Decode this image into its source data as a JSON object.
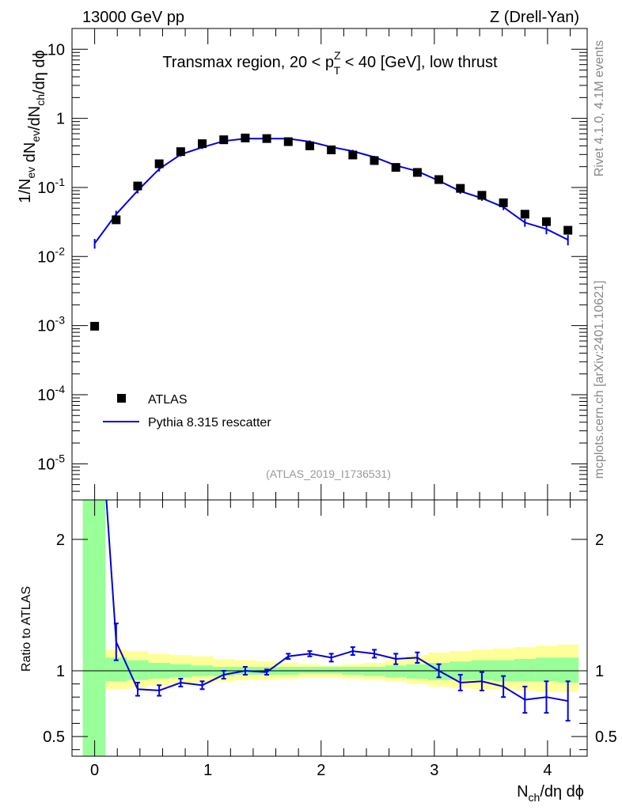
{
  "header": {
    "left": "13000 GeV pp",
    "right": "Z (Drell-Yan)"
  },
  "side_labels": {
    "rivet": "Rivet 4.1.0,  4.1M events",
    "mcplots": "mcplots.cern.ch [arXiv:2401.10621]"
  },
  "colors": {
    "mc_line": "#0000dd",
    "band_stat": "#99ff99",
    "band_total": "#ffff99",
    "data_marker": "#000000"
  },
  "chart_data": [
    {
      "type": "scatter",
      "title": "Transmax region, 20 < p_T^Z < 40 [GeV], low thrust",
      "analysis_id": "(ATLAS_2019_I1736531)",
      "ylabel": "1/N_ev dN_ev/dN_ch/dη dϕ",
      "yscale": "log",
      "ylim": [
        3e-06,
        20
      ],
      "xlim": [
        -0.2,
        4.35
      ],
      "y_ticks": [
        {
          "label": "10",
          "value": 10
        },
        {
          "label": "1",
          "value": 1
        },
        {
          "label": "10^-1",
          "value": 0.1
        },
        {
          "label": "10^-2",
          "value": 0.01
        },
        {
          "label": "10^-3",
          "value": 0.001
        },
        {
          "label": "10^-4",
          "value": 0.0001
        },
        {
          "label": "10^-5",
          "value": 1e-05
        }
      ],
      "legend": [
        {
          "name": "ATLAS",
          "style": "marker"
        },
        {
          "name": "Pythia 8.315 rescatter",
          "style": "line"
        }
      ],
      "x": [
        0,
        0.19,
        0.38,
        0.57,
        0.76,
        0.95,
        1.14,
        1.33,
        1.52,
        1.71,
        1.9,
        2.09,
        2.28,
        2.47,
        2.66,
        2.85,
        3.04,
        3.23,
        3.42,
        3.61,
        3.8,
        3.99,
        4.18
      ],
      "series": [
        {
          "name": "ATLAS",
          "values": [
            0.00098,
            0.034,
            0.105,
            0.22,
            0.33,
            0.43,
            0.49,
            0.52,
            0.51,
            0.46,
            0.4,
            0.35,
            0.295,
            0.245,
            0.195,
            0.165,
            0.13,
            0.097,
            0.077,
            0.06,
            0.041,
            0.032,
            0.024
          ]
        },
        {
          "name": "Pythia 8.315 rescatter",
          "values": [
            0.0155,
            0.041,
            0.09,
            0.185,
            0.3,
            0.38,
            0.47,
            0.51,
            0.51,
            0.51,
            0.46,
            0.385,
            0.335,
            0.275,
            0.208,
            0.172,
            0.125,
            0.088,
            0.07,
            0.052,
            0.031,
            0.025,
            0.0175
          ],
          "errors": [
            0.0025,
            0.005,
            0.008,
            0.015,
            0.02,
            0.02,
            0.02,
            0.02,
            0.02,
            0.02,
            0.02,
            0.02,
            0.015,
            0.012,
            0.01,
            0.009,
            0.008,
            0.007,
            0.006,
            0.005,
            0.004,
            0.004,
            0.003
          ]
        }
      ]
    },
    {
      "type": "line",
      "ylabel": "Ratio to ATLAS",
      "xlabel": "N_ch/dη dϕ",
      "ylim": [
        0.35,
        2.3
      ],
      "xlim": [
        -0.2,
        4.35
      ],
      "y_ticks": [
        {
          "label": "2",
          "value": 2
        },
        {
          "label": "1",
          "value": 1
        },
        {
          "label": "0.5",
          "value": 0.5
        }
      ],
      "x_ticks": [
        {
          "label": "0",
          "value": 0
        },
        {
          "label": "1",
          "value": 1
        },
        {
          "label": "2",
          "value": 2
        },
        {
          "label": "3",
          "value": 3
        },
        {
          "label": "4",
          "value": 4
        }
      ],
      "band_edges": [
        -0.105,
        0.095,
        0.285,
        0.475,
        0.665,
        0.855,
        1.045,
        1.235,
        1.425,
        1.615,
        1.805,
        1.995,
        2.185,
        2.375,
        2.565,
        2.755,
        2.945,
        3.135,
        3.325,
        3.515,
        3.705,
        3.895,
        4.085,
        4.275
      ],
      "band_stat": [
        [
          0.3,
          2.3
        ],
        [
          0.92,
          1.1
        ],
        [
          0.93,
          1.08
        ],
        [
          0.94,
          1.06
        ],
        [
          0.95,
          1.05
        ],
        [
          0.96,
          1.04
        ],
        [
          0.96,
          1.03
        ],
        [
          0.97,
          1.03
        ],
        [
          0.97,
          1.03
        ],
        [
          0.97,
          1.03
        ],
        [
          0.98,
          1.03
        ],
        [
          0.98,
          1.03
        ],
        [
          0.97,
          1.03
        ],
        [
          0.96,
          1.03
        ],
        [
          0.95,
          1.04
        ],
        [
          0.94,
          1.05
        ],
        [
          0.93,
          1.06
        ],
        [
          0.93,
          1.07
        ],
        [
          0.93,
          1.08
        ],
        [
          0.92,
          1.08
        ],
        [
          0.92,
          1.09
        ],
        [
          0.92,
          1.1
        ],
        [
          0.91,
          1.1
        ]
      ],
      "band_total": [
        [
          0.3,
          2.3
        ],
        [
          0.86,
          1.16
        ],
        [
          0.87,
          1.15
        ],
        [
          0.89,
          1.13
        ],
        [
          0.9,
          1.12
        ],
        [
          0.91,
          1.11
        ],
        [
          0.92,
          1.09
        ],
        [
          0.93,
          1.08
        ],
        [
          0.93,
          1.07
        ],
        [
          0.94,
          1.06
        ],
        [
          0.95,
          1.05
        ],
        [
          0.95,
          1.04
        ],
        [
          0.94,
          1.05
        ],
        [
          0.93,
          1.06
        ],
        [
          0.92,
          1.08
        ],
        [
          0.9,
          1.12
        ],
        [
          0.88,
          1.14
        ],
        [
          0.87,
          1.15
        ],
        [
          0.86,
          1.16
        ],
        [
          0.86,
          1.17
        ],
        [
          0.85,
          1.18
        ],
        [
          0.84,
          1.19
        ],
        [
          0.84,
          1.2
        ]
      ],
      "x": [
        0.1,
        0.19,
        0.38,
        0.57,
        0.76,
        0.95,
        1.14,
        1.33,
        1.52,
        1.71,
        1.9,
        2.09,
        2.28,
        2.47,
        2.66,
        2.85,
        3.04,
        3.23,
        3.42,
        3.61,
        3.8,
        3.99,
        4.18
      ],
      "series": [
        {
          "name": "Pythia 8.315 rescatter / ATLAS",
          "values": [
            2.35,
            1.22,
            0.86,
            0.85,
            0.91,
            0.89,
            0.97,
            1.0,
            0.99,
            1.11,
            1.13,
            1.1,
            1.15,
            1.13,
            1.09,
            1.1,
            1.0,
            0.91,
            0.92,
            0.88,
            0.78,
            0.8,
            0.77
          ],
          "errors": [
            0.0,
            0.14,
            0.05,
            0.04,
            0.03,
            0.03,
            0.03,
            0.03,
            0.02,
            0.02,
            0.02,
            0.03,
            0.03,
            0.03,
            0.04,
            0.04,
            0.05,
            0.06,
            0.07,
            0.08,
            0.1,
            0.12,
            0.15
          ]
        }
      ]
    }
  ]
}
